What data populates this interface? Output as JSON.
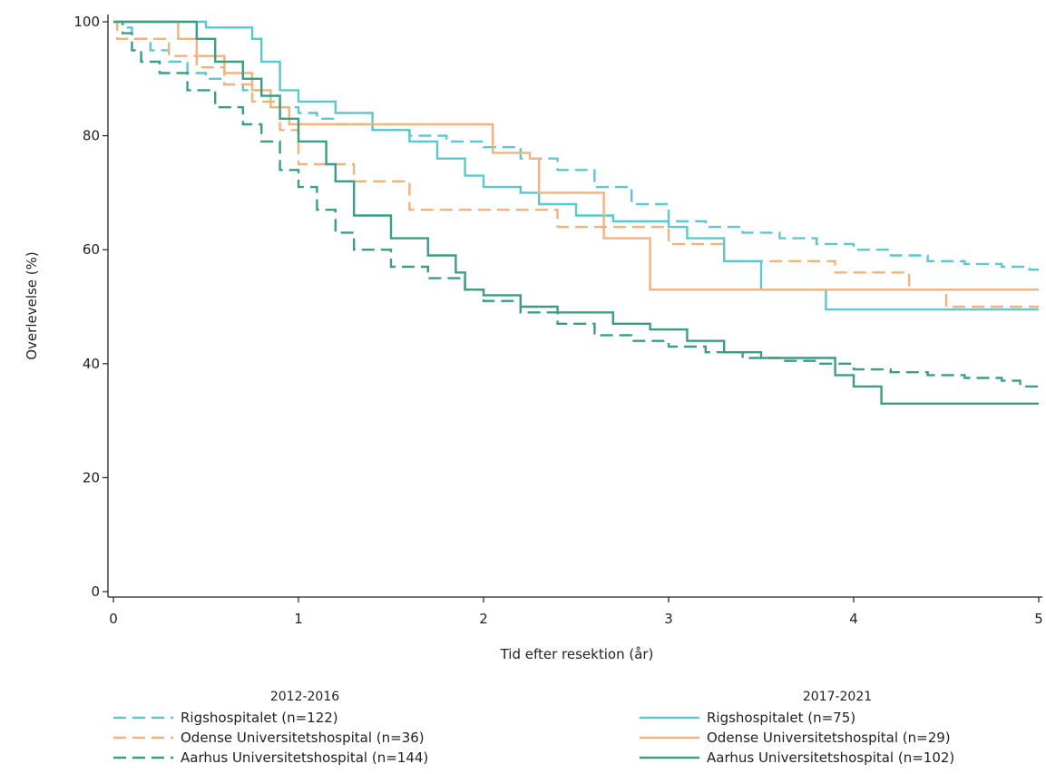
{
  "chart_data": {
    "type": "line",
    "subtype": "kaplan-meier step",
    "xlabel": "Tid efter resektion (år)",
    "ylabel": "Overlevelse (%)",
    "xlim": [
      0,
      5
    ],
    "ylim": [
      0,
      100
    ],
    "xticks": [
      "0",
      "1",
      "2",
      "3",
      "4",
      "5"
    ],
    "yticks": [
      "0",
      "20",
      "40",
      "60",
      "80",
      "100"
    ],
    "grid": false,
    "legend_position": "bottom",
    "legend_groups": [
      "2012-2016",
      "2017-2021"
    ],
    "colors": {
      "Rigshospitalet": "#5bc8cf",
      "Odense": "#f2b27c",
      "Aarhus": "#3a9e86"
    },
    "series": [
      {
        "name": "Rigshospitalet (n=122)",
        "group": "2012-2016",
        "color": "#5bc8cf",
        "dash": true,
        "x": [
          0,
          0.05,
          0.1,
          0.2,
          0.3,
          0.4,
          0.5,
          0.6,
          0.7,
          0.8,
          0.9,
          1.0,
          1.1,
          1.2,
          1.4,
          1.6,
          1.8,
          2.0,
          2.2,
          2.4,
          2.6,
          2.8,
          3.0,
          3.2,
          3.4,
          3.6,
          3.8,
          4.0,
          4.2,
          4.4,
          4.6,
          4.8,
          4.95,
          5.0
        ],
        "y": [
          100,
          99,
          97,
          95,
          93,
          91,
          90,
          89,
          88,
          87,
          85,
          84,
          83,
          82,
          81,
          80,
          79,
          78,
          76,
          74,
          71,
          68,
          65,
          64,
          63,
          62,
          61,
          60,
          59,
          58,
          57.5,
          57,
          56.5,
          56.5
        ]
      },
      {
        "name": "Odense Universitetshospital (n=36)",
        "group": "2012-2016",
        "color": "#f2b27c",
        "dash": true,
        "x": [
          0,
          0.02,
          0.3,
          0.45,
          0.6,
          0.75,
          0.9,
          1.0,
          1.3,
          1.6,
          2.2,
          2.4,
          3.0,
          3.3,
          3.9,
          4.3,
          4.5,
          5.0
        ],
        "y": [
          100,
          97,
          94,
          92,
          89,
          86,
          81,
          75,
          72,
          67,
          67,
          64,
          61,
          58,
          56,
          53,
          50,
          50
        ]
      },
      {
        "name": "Aarhus Universitetshospital (n=144)",
        "group": "2012-2016",
        "color": "#3a9e86",
        "dash": true,
        "x": [
          0,
          0.05,
          0.1,
          0.15,
          0.25,
          0.4,
          0.55,
          0.7,
          0.8,
          0.9,
          1.0,
          1.1,
          1.2,
          1.3,
          1.5,
          1.7,
          1.9,
          2.0,
          2.2,
          2.4,
          2.6,
          2.8,
          3.0,
          3.2,
          3.4,
          3.6,
          3.8,
          4.0,
          4.2,
          4.4,
          4.6,
          4.8,
          4.9,
          5.0
        ],
        "y": [
          100,
          98,
          95,
          93,
          91,
          88,
          85,
          82,
          79,
          74,
          71,
          67,
          63,
          60,
          57,
          55,
          53,
          51,
          49,
          47,
          45,
          44,
          43,
          42,
          41,
          40.5,
          40,
          39,
          38.5,
          38,
          37.5,
          37,
          36,
          35.5
        ]
      },
      {
        "name": "Rigshospitalet (n=75)",
        "group": "2017-2021",
        "color": "#5bc8cf",
        "dash": false,
        "x": [
          0,
          0.5,
          0.75,
          0.8,
          0.9,
          1.0,
          1.2,
          1.4,
          1.6,
          1.75,
          1.9,
          2.0,
          2.2,
          2.3,
          2.5,
          2.7,
          3.0,
          3.1,
          3.3,
          3.5,
          3.85,
          4.2,
          5.0
        ],
        "y": [
          100,
          99,
          97,
          93,
          88,
          86,
          84,
          81,
          79,
          76,
          73,
          71,
          70,
          68,
          66,
          65,
          64,
          62,
          58,
          53,
          49.5,
          49.5,
          49.5
        ]
      },
      {
        "name": "Odense Universitetshospital (n=29)",
        "group": "2017-2021",
        "color": "#f2b27c",
        "dash": false,
        "x": [
          0,
          0.35,
          0.45,
          0.6,
          0.75,
          0.85,
          0.95,
          1.9,
          2.05,
          2.25,
          2.3,
          2.65,
          2.9,
          3.8,
          5.0
        ],
        "y": [
          100,
          97,
          94,
          91,
          88,
          85,
          82,
          82,
          77,
          76,
          70,
          62,
          53,
          53,
          53
        ]
      },
      {
        "name": "Aarhus Universitetshospital (n=102)",
        "group": "2017-2021",
        "color": "#3a9e86",
        "dash": false,
        "x": [
          0,
          0.35,
          0.45,
          0.55,
          0.7,
          0.8,
          0.9,
          1.0,
          1.15,
          1.2,
          1.3,
          1.5,
          1.7,
          1.85,
          1.9,
          2.0,
          2.2,
          2.4,
          2.7,
          2.9,
          3.1,
          3.3,
          3.5,
          3.8,
          3.9,
          4.0,
          4.15,
          5.0
        ],
        "y": [
          100,
          100,
          97,
          93,
          90,
          87,
          83,
          79,
          75,
          72,
          66,
          62,
          59,
          56,
          53,
          52,
          50,
          49,
          47,
          46,
          44,
          42,
          41,
          41,
          38,
          36,
          33,
          33
        ]
      }
    ]
  }
}
